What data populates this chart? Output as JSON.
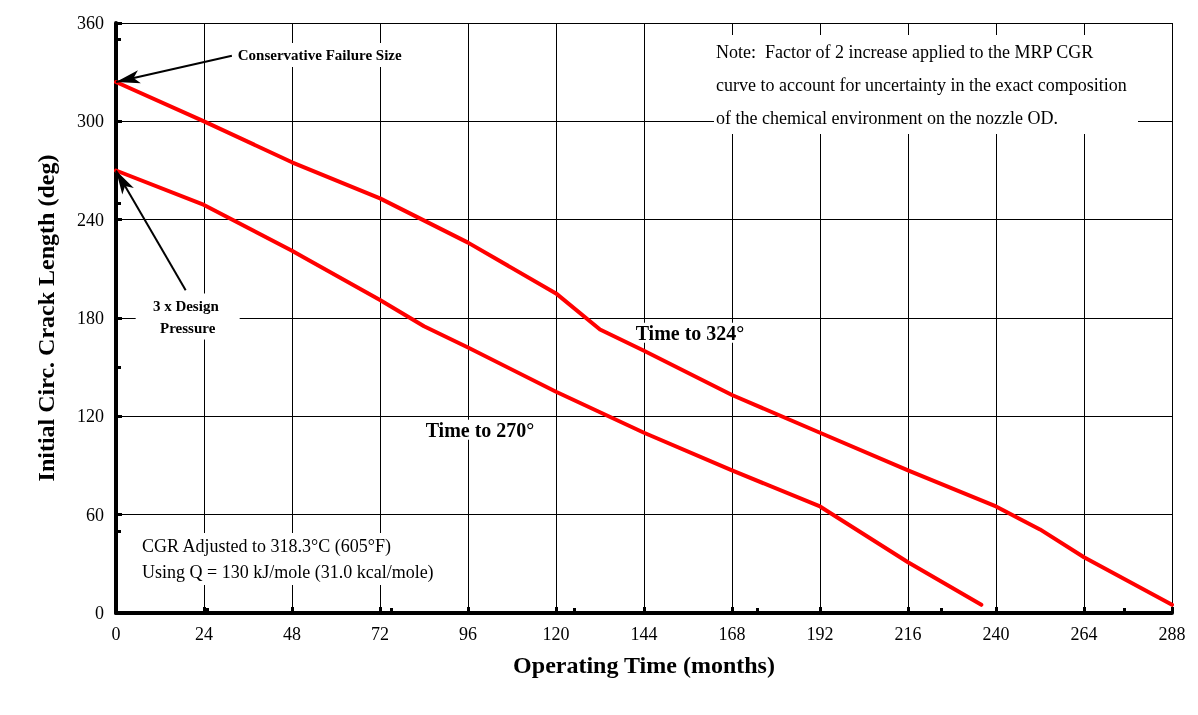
{
  "chart_data": {
    "type": "line",
    "xlabel": "Operating Time (months)",
    "ylabel": "Initial Circ. Crack Length (deg)",
    "xlim": [
      0,
      288
    ],
    "xticks": [
      0,
      24,
      48,
      72,
      96,
      120,
      144,
      168,
      192,
      216,
      240,
      264,
      288
    ],
    "ylim": [
      0,
      360
    ],
    "yticks": [
      0,
      60,
      120,
      180,
      240,
      300,
      360
    ],
    "grid": true,
    "legend": false,
    "marker": "none",
    "line_style": "solid",
    "series": [
      {
        "name": "Time to 324°",
        "color": "#ff0000",
        "x": [
          0,
          24,
          48,
          72,
          96,
          120,
          132,
          144,
          168,
          192,
          216,
          240,
          252,
          264,
          288
        ],
        "values": [
          324,
          300,
          275,
          253,
          226,
          195,
          173,
          160,
          133,
          110,
          87,
          65,
          51,
          34,
          5
        ]
      },
      {
        "name": "Time to 270°",
        "color": "#ff0000",
        "x": [
          0,
          24,
          48,
          72,
          84,
          96,
          120,
          144,
          168,
          192,
          216,
          236
        ],
        "values": [
          270,
          249,
          221,
          191,
          175,
          162,
          135,
          110,
          87,
          65,
          31,
          5
        ]
      }
    ],
    "annotations": [
      {
        "text": "Conservative Failure Size",
        "x": 0,
        "y": 324
      },
      {
        "text": "3 x Design Pressure",
        "x": 0,
        "y": 270
      },
      "Note:  Factor of 2 increase applied to the MRP CGR curve to account for uncertainty in the exact composition of the chemical environment on the nozzle OD.",
      "CGR Adjusted to 318.3°C (605°F) Using Q = 130 kJ/mole (31.0 kcal/mole)"
    ]
  }
}
